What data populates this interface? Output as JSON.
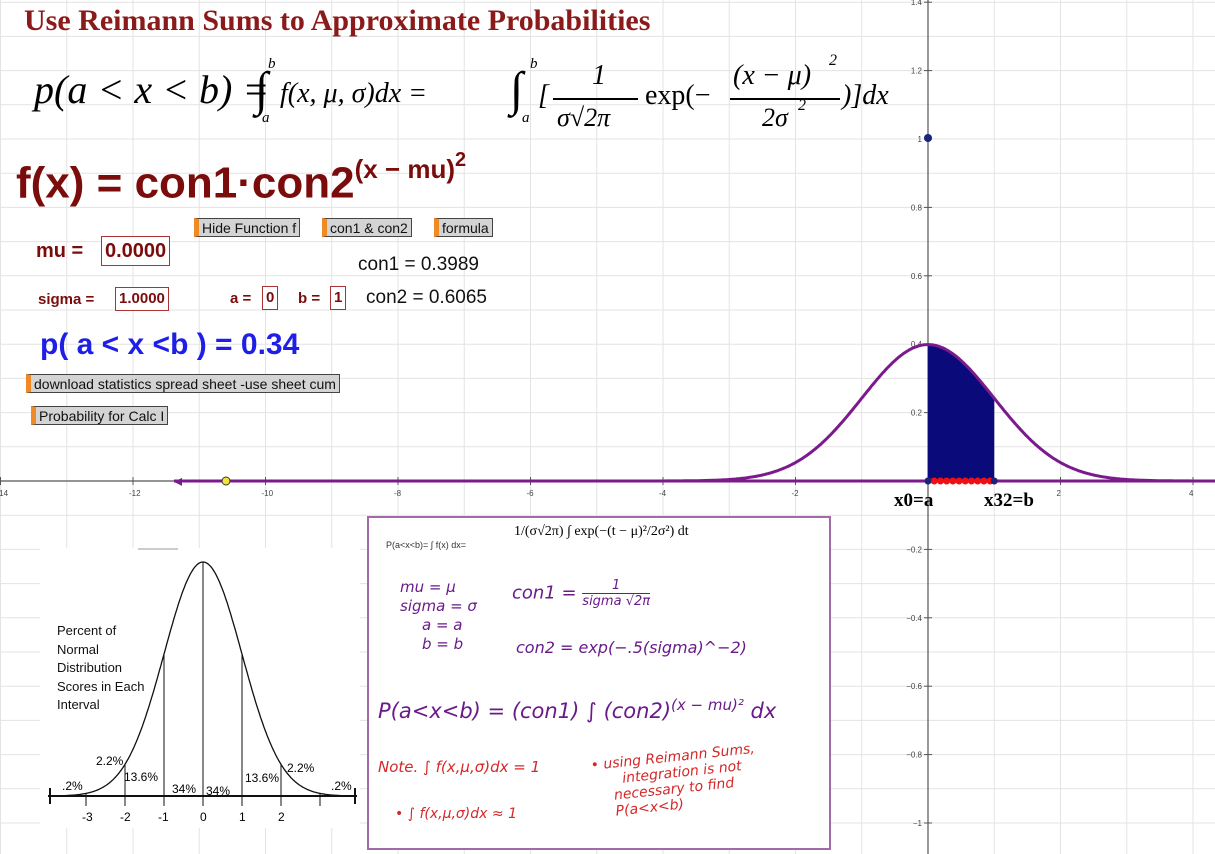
{
  "title": "Use Reimann Sums to Approximate Probabilities",
  "formula_top": {
    "lhs": "p(a < x < b) = ",
    "mid": "f(x, μ, σ)dx = ",
    "exp": "exp(−",
    "num": "(x − μ)",
    "den": "2σ",
    "one": "1",
    "sigsqrt": "σ√2π",
    "tail": ")]dx",
    "open": "[",
    "b": "b",
    "a": "a",
    "two": "2"
  },
  "fx": {
    "text": "f(x) = con1·con2",
    "exponent": "(x − mu)",
    "sq": "2"
  },
  "buttons": {
    "hide_function": "Hide Function f",
    "con1_con2": "con1 & con2",
    "formula": "formula",
    "download": "download statistics spread sheet -use sheet cum",
    "calc": "Probability for Calc I"
  },
  "params": {
    "mu_label": "mu =",
    "mu_value": "0.0000",
    "sigma_label": "sigma =",
    "sigma_value": "1.0000",
    "a_label": "a =",
    "a_value": "0",
    "b_label": "b =",
    "b_value": "1"
  },
  "constants": {
    "con1": "con1 = 0.3989",
    "con2": "con2 = 0.6065"
  },
  "probability": "p( a < x <b ) = 0.34",
  "graph": {
    "x_ticks": [
      "-14",
      "-12",
      "-10",
      "-8",
      "-6",
      "-4",
      "-2",
      "2",
      "4"
    ],
    "y_ticks": [
      "1.4",
      "1.2",
      "1",
      "0.8",
      "0.6",
      "0.4",
      "0.2",
      "−0.2",
      "−0.4",
      "−0.6",
      "−0.8",
      "−1"
    ],
    "label_a": "x0=a",
    "label_b": "x32=b",
    "curve_color": "#7b1a8c",
    "fill_color": "#0a0a7a"
  },
  "bell_image": {
    "caption": [
      "Percent of",
      "Normal",
      "Distribution",
      "Scores in Each",
      "Interval"
    ],
    "pcts": [
      "2.2%",
      "13.6%",
      "34%",
      "34%",
      "13.6%",
      "2.2%",
      ".2%",
      ".2%"
    ],
    "ticks": [
      "-3",
      "-2",
      "-1",
      "0",
      "1",
      "2"
    ]
  },
  "note": {
    "formula_print": "P(a<x<b)=",
    "formula_mid": "f(x) dx=",
    "h1": "mu = μ",
    "h2": "sigma = σ",
    "h3": "a = a",
    "h4": "b = b",
    "h5": "con1 = ",
    "h5b": "1",
    "h5c": "sigma √2π",
    "h6": "con2 = exp(−.5(sigma)^−2)",
    "h7": "P(a<x<b) = (con1)",
    "h7b": "(con2)",
    "h7c": "(x − mu)²",
    "h7d": "dx",
    "n1": "Note.",
    "n2": "f(x,μ,σ)dx = 1",
    "n3": "f(x,μ,σ)dx ≈ 1",
    "n4": "• using Reimann Sums,",
    "n5": "integration is not",
    "n6": "necessary to find",
    "n7": "P(a<x<b)"
  }
}
